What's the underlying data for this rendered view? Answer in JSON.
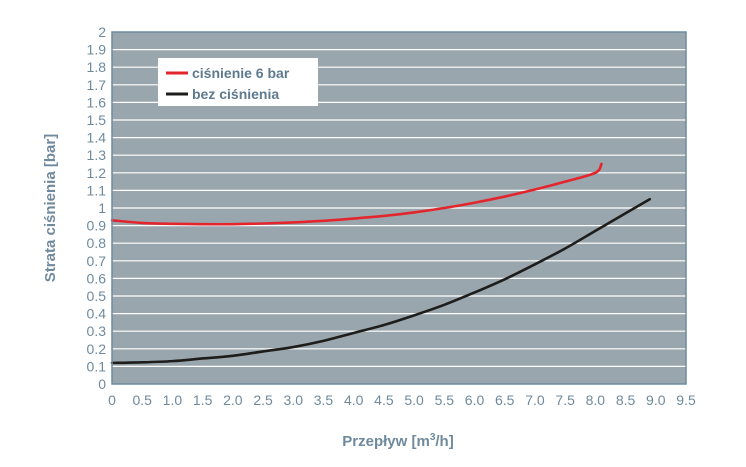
{
  "chart_data": {
    "type": "line",
    "title": "",
    "xlabel": "Przepływ [m",
    "xlabel_sup": "3",
    "xlabel_suffix": "/h]",
    "ylabel": "Strata ciśnienia [bar]",
    "xlim": [
      0,
      9.5
    ],
    "ylim": [
      0,
      2
    ],
    "x_ticks": [
      "0",
      "0.5",
      "1.0",
      "1.5",
      "2.0",
      "2.5",
      "3.0",
      "3.5",
      "4.0",
      "4.5",
      "5.0",
      "5.5",
      "6.0",
      "6.5",
      "7.0",
      "7.5",
      "8.0",
      "8.5",
      "9.0",
      "9.5"
    ],
    "y_ticks": [
      "0",
      "0.1",
      "0.2",
      "0.3",
      "0.4",
      "0.5",
      "0.6",
      "0.7",
      "0.8",
      "0.9",
      "1",
      "1.1",
      "1.2",
      "1.3",
      "1.4",
      "1.5",
      "1.6",
      "1.7",
      "1.8",
      "1.9",
      "2"
    ],
    "grid": true,
    "legend_position": "top-left",
    "background_color": "#9aa6ad",
    "grid_color": "#ffffff",
    "series": [
      {
        "name": "ciśnienie 6 bar",
        "color": "#e3262d",
        "x": [
          0,
          0.5,
          1.0,
          1.5,
          2.0,
          2.5,
          3.0,
          3.5,
          4.0,
          4.5,
          5.0,
          5.5,
          6.0,
          6.5,
          7.0,
          7.5,
          8.0,
          8.1
        ],
        "y": [
          0.93,
          0.915,
          0.91,
          0.908,
          0.908,
          0.912,
          0.918,
          0.927,
          0.94,
          0.955,
          0.975,
          1.0,
          1.03,
          1.065,
          1.105,
          1.15,
          1.2,
          1.25
        ]
      },
      {
        "name": "bez ciśnienia",
        "color": "#1d1d1b",
        "x": [
          0,
          0.5,
          1.0,
          1.5,
          2.0,
          2.5,
          3.0,
          3.5,
          4.0,
          4.5,
          5.0,
          5.5,
          6.0,
          6.5,
          7.0,
          7.5,
          8.0,
          8.5,
          8.9
        ],
        "y": [
          0.12,
          0.123,
          0.13,
          0.145,
          0.16,
          0.185,
          0.21,
          0.245,
          0.29,
          0.335,
          0.39,
          0.45,
          0.52,
          0.595,
          0.68,
          0.77,
          0.87,
          0.97,
          1.05
        ]
      }
    ]
  }
}
